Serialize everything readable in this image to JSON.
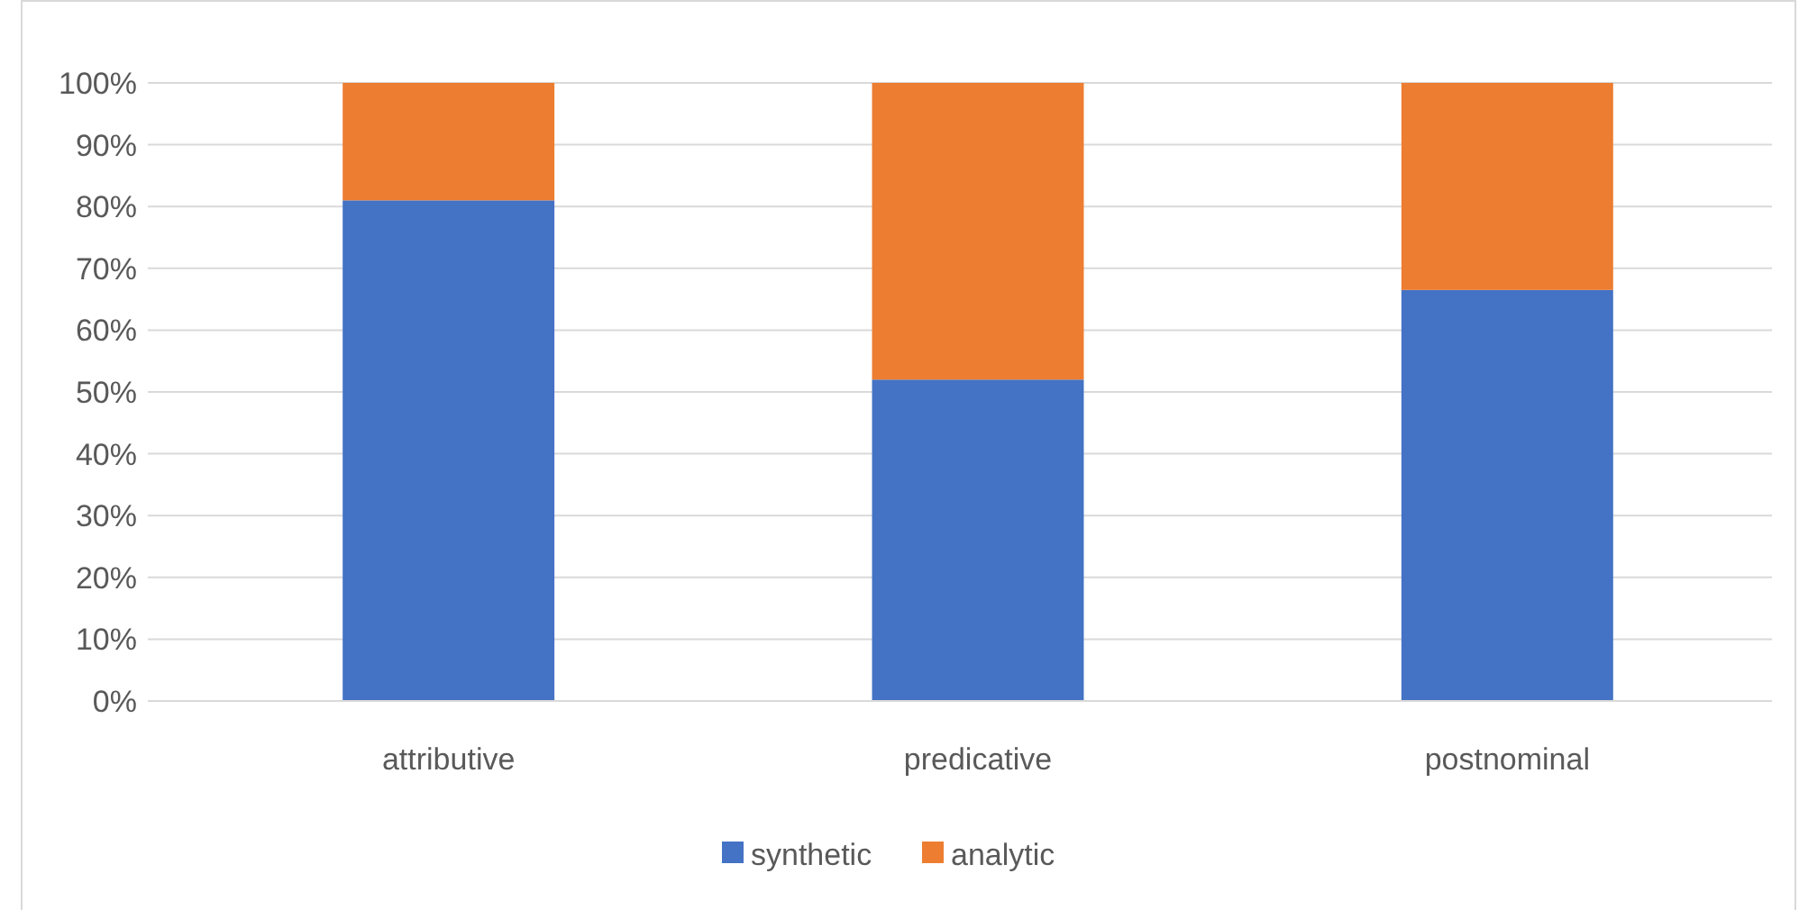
{
  "chart_data": {
    "type": "bar",
    "stacked": true,
    "categories": [
      "attributive",
      "predicative",
      "postnominal"
    ],
    "series": [
      {
        "name": "synthetic",
        "color": "#4472c4",
        "values": [
          81,
          52,
          66.5
        ]
      },
      {
        "name": "analytic",
        "color": "#ed7d31",
        "values": [
          19,
          48,
          33.5
        ]
      }
    ],
    "ylim": [
      0,
      100
    ],
    "yticks": [
      {
        "value": 0,
        "label": "0%"
      },
      {
        "value": 10,
        "label": "10%"
      },
      {
        "value": 20,
        "label": "20%"
      },
      {
        "value": 30,
        "label": "30%"
      },
      {
        "value": 40,
        "label": "40%"
      },
      {
        "value": 50,
        "label": "50%"
      },
      {
        "value": 60,
        "label": "60%"
      },
      {
        "value": 70,
        "label": "70%"
      },
      {
        "value": 80,
        "label": "80%"
      },
      {
        "value": 90,
        "label": "90%"
      },
      {
        "value": 100,
        "label": "100%"
      }
    ],
    "grid": "y",
    "legend": "bottom"
  }
}
